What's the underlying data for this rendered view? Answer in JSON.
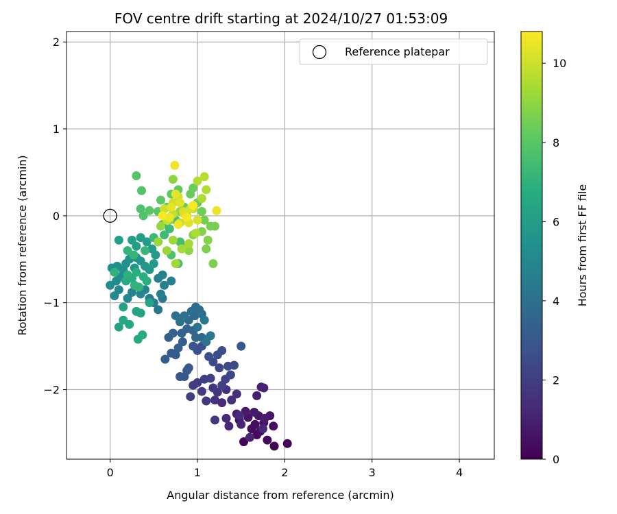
{
  "chart_data": {
    "type": "scatter",
    "title": "FOV centre drift starting at 2024/10/27 01:53:09",
    "xlabel": "Angular distance from reference (arcmin)",
    "ylabel": "Rotation from reference (arcmin)",
    "xlim": [
      -0.5,
      4.4
    ],
    "ylim": [
      -2.8,
      2.12
    ],
    "xticks": [
      0,
      1,
      2,
      3,
      4
    ],
    "yticks": [
      -2,
      -1,
      0,
      1,
      2
    ],
    "xtick_labels": [
      "0",
      "1",
      "2",
      "3",
      "4"
    ],
    "ytick_labels": [
      "−2",
      "−1",
      "0",
      "1",
      "2"
    ],
    "grid": true,
    "legend": {
      "position": "top-right",
      "entries": [
        {
          "label": "Reference platepar",
          "marker": "open-circle"
        }
      ]
    },
    "reference_point": {
      "x": 0,
      "y": 0
    },
    "colorbar": {
      "label": "Hours from first FF file",
      "min": 0,
      "max": 10.8,
      "ticks": [
        0,
        2,
        4,
        6,
        8,
        10
      ],
      "tick_labels": [
        "0",
        "2",
        "4",
        "6",
        "8",
        "10"
      ],
      "colormap": "viridis"
    },
    "points": [
      [
        1.88,
        -2.65,
        0.05
      ],
      [
        2.03,
        -2.62,
        0.1
      ],
      [
        1.53,
        -2.6,
        0.15
      ],
      [
        1.8,
        -2.58,
        0.2
      ],
      [
        1.68,
        -2.52,
        0.25
      ],
      [
        1.62,
        -2.45,
        0.3
      ],
      [
        1.72,
        -2.48,
        0.35
      ],
      [
        1.87,
        -2.42,
        0.4
      ],
      [
        1.66,
        -2.4,
        0.45
      ],
      [
        1.76,
        -2.38,
        0.5
      ],
      [
        1.48,
        -2.35,
        0.55
      ],
      [
        1.58,
        -2.32,
        0.6
      ],
      [
        1.7,
        -2.3,
        0.65
      ],
      [
        1.83,
        -2.3,
        0.7
      ],
      [
        1.55,
        -2.25,
        0.75
      ],
      [
        1.65,
        -2.26,
        0.8
      ],
      [
        1.45,
        -2.28,
        0.85
      ],
      [
        1.77,
        -2.33,
        0.9
      ],
      [
        1.68,
        -2.07,
        0.95
      ],
      [
        1.73,
        -1.97,
        1.0
      ],
      [
        1.76,
        -1.98,
        1.05
      ],
      [
        1.5,
        -2.4,
        1.1
      ],
      [
        1.6,
        -2.55,
        1.15
      ],
      [
        1.75,
        -2.45,
        1.2
      ],
      [
        1.36,
        -2.42,
        1.25
      ],
      [
        1.33,
        -2.33,
        1.3
      ],
      [
        1.48,
        -2.3,
        1.35
      ],
      [
        1.28,
        -2.15,
        1.4
      ],
      [
        1.39,
        -2.12,
        1.45
      ],
      [
        1.45,
        -2.05,
        1.5
      ],
      [
        1.2,
        -2.12,
        1.55
      ],
      [
        1.33,
        -2.0,
        1.6
      ],
      [
        1.23,
        -2.03,
        1.65
      ],
      [
        1.18,
        -1.98,
        1.7
      ],
      [
        1.1,
        -2.13,
        1.75
      ],
      [
        1.2,
        -2.35,
        1.8
      ],
      [
        1.05,
        -2.02,
        1.85
      ],
      [
        1.0,
        -1.92,
        1.9
      ],
      [
        0.95,
        -1.95,
        1.95
      ],
      [
        0.92,
        -2.08,
        2.0
      ],
      [
        1.08,
        -1.88,
        2.05
      ],
      [
        1.15,
        -1.87,
        2.1
      ],
      [
        1.28,
        -1.95,
        2.15
      ],
      [
        1.32,
        -1.88,
        2.2
      ],
      [
        1.38,
        -1.83,
        2.25
      ],
      [
        1.25,
        -1.75,
        2.3
      ],
      [
        1.35,
        -1.73,
        2.4
      ],
      [
        1.42,
        -1.72,
        2.45
      ],
      [
        1.18,
        -1.68,
        2.5
      ],
      [
        1.23,
        -1.6,
        2.55
      ],
      [
        1.28,
        -1.55,
        2.6
      ],
      [
        1.13,
        -1.62,
        2.65
      ],
      [
        1.05,
        -1.5,
        2.7
      ],
      [
        1.0,
        -1.55,
        2.75
      ],
      [
        0.95,
        -1.5,
        2.8
      ],
      [
        1.5,
        -1.5,
        2.85
      ],
      [
        0.85,
        -1.85,
        2.9
      ],
      [
        0.8,
        -1.85,
        2.95
      ],
      [
        0.88,
        -1.78,
        3.0
      ],
      [
        0.9,
        -1.75,
        3.05
      ],
      [
        0.75,
        -1.6,
        3.1
      ],
      [
        0.7,
        -1.58,
        3.15
      ],
      [
        0.63,
        -1.65,
        3.2
      ],
      [
        0.78,
        -1.52,
        3.25
      ],
      [
        0.83,
        -1.45,
        3.3
      ],
      [
        0.67,
        -1.4,
        3.35
      ],
      [
        0.72,
        -1.35,
        3.4
      ],
      [
        0.82,
        -1.35,
        3.45
      ],
      [
        0.88,
        -1.3,
        3.5
      ],
      [
        0.95,
        -1.32,
        3.55
      ],
      [
        0.98,
        -1.4,
        3.6
      ],
      [
        1.05,
        -1.4,
        3.65
      ],
      [
        0.9,
        -1.2,
        3.7
      ],
      [
        0.97,
        -1.15,
        3.75
      ],
      [
        0.93,
        -1.1,
        3.8
      ],
      [
        0.98,
        -1.05,
        3.85
      ],
      [
        1.02,
        -1.08,
        3.9
      ],
      [
        1.05,
        -1.13,
        3.95
      ],
      [
        0.8,
        -1.22,
        4.0
      ],
      [
        0.75,
        -1.15,
        4.05
      ],
      [
        0.85,
        -1.15,
        4.1
      ],
      [
        1.0,
        -1.28,
        4.15
      ],
      [
        1.1,
        -1.45,
        4.2
      ],
      [
        1.15,
        -1.38,
        4.25
      ],
      [
        1.08,
        -1.2,
        4.3
      ],
      [
        0.55,
        -1.08,
        4.4
      ],
      [
        0.6,
        -0.95,
        4.45
      ],
      [
        0.5,
        -1.0,
        4.5
      ],
      [
        0.45,
        -0.95,
        4.55
      ],
      [
        0.58,
        -0.9,
        4.6
      ],
      [
        0.62,
        -0.8,
        4.65
      ],
      [
        0.7,
        -0.75,
        4.7
      ],
      [
        0.55,
        -0.72,
        4.75
      ],
      [
        0.6,
        -0.68,
        4.8
      ],
      [
        0.4,
        -0.85,
        4.85
      ],
      [
        0.35,
        -0.9,
        4.9
      ],
      [
        0.25,
        -0.88,
        4.95
      ],
      [
        0.2,
        -0.95,
        5.0
      ],
      [
        0.05,
        -0.92,
        5.05
      ],
      [
        0.1,
        -0.85,
        5.1
      ],
      [
        0.0,
        -0.8,
        5.15
      ],
      [
        0.07,
        -0.75,
        5.2
      ],
      [
        0.12,
        -0.7,
        5.25
      ],
      [
        0.15,
        -0.62,
        5.3
      ],
      [
        0.02,
        -0.6,
        5.35
      ],
      [
        0.08,
        -0.58,
        5.4
      ],
      [
        0.18,
        -0.55,
        5.45
      ],
      [
        0.22,
        -0.5,
        5.5
      ],
      [
        0.3,
        -0.48,
        5.55
      ],
      [
        0.35,
        -0.52,
        5.6
      ],
      [
        0.28,
        -0.6,
        5.65
      ],
      [
        0.4,
        -0.58,
        5.7
      ],
      [
        0.45,
        -0.62,
        5.75
      ],
      [
        0.5,
        -0.55,
        5.8
      ],
      [
        0.52,
        -0.45,
        5.85
      ],
      [
        0.48,
        -0.38,
        5.9
      ],
      [
        0.42,
        -0.3,
        5.95
      ],
      [
        0.35,
        -0.25,
        6.0
      ],
      [
        0.3,
        -0.35,
        6.05
      ],
      [
        0.25,
        -0.28,
        6.1
      ],
      [
        0.1,
        -0.28,
        6.15
      ],
      [
        0.15,
        -1.05,
        6.2
      ],
      [
        0.1,
        -1.28,
        6.25
      ],
      [
        0.3,
        -1.1,
        6.3
      ],
      [
        0.35,
        -1.12,
        6.35
      ],
      [
        0.45,
        -1.0,
        6.4
      ],
      [
        0.15,
        -1.2,
        6.45
      ],
      [
        0.22,
        -1.25,
        6.5
      ],
      [
        0.32,
        -1.42,
        6.55
      ],
      [
        0.37,
        -1.37,
        6.6
      ],
      [
        0.18,
        -0.75,
        6.65
      ],
      [
        0.25,
        -0.72,
        6.7
      ],
      [
        0.38,
        -0.7,
        6.75
      ],
      [
        0.3,
        -0.65,
        6.8
      ],
      [
        0.42,
        -0.75,
        6.85
      ],
      [
        0.2,
        -0.68,
        6.9
      ],
      [
        0.05,
        -0.65,
        6.95
      ],
      [
        0.28,
        -0.8,
        7.0
      ],
      [
        0.33,
        -0.82,
        7.05
      ],
      [
        0.2,
        -0.4,
        7.1
      ],
      [
        0.27,
        -0.45,
        7.15
      ],
      [
        0.4,
        -0.4,
        7.2
      ],
      [
        0.5,
        -0.25,
        7.25
      ],
      [
        0.55,
        -0.3,
        7.3
      ],
      [
        0.62,
        -0.22,
        7.35
      ],
      [
        0.68,
        -0.15,
        7.4
      ],
      [
        0.6,
        -0.1,
        7.45
      ],
      [
        0.75,
        -0.05,
        7.5
      ],
      [
        0.8,
        -0.3,
        7.55
      ],
      [
        0.85,
        -0.35,
        7.6
      ],
      [
        0.78,
        -0.55,
        7.65
      ],
      [
        0.7,
        -0.45,
        7.7
      ],
      [
        0.35,
        0.08,
        7.75
      ],
      [
        0.38,
        0.0,
        7.8
      ],
      [
        0.36,
        0.29,
        7.85
      ],
      [
        0.3,
        0.46,
        7.9
      ],
      [
        0.45,
        0.06,
        7.95
      ],
      [
        0.55,
        0.05,
        8.0
      ],
      [
        0.58,
        0.18,
        8.05
      ],
      [
        0.65,
        0.1,
        8.1
      ],
      [
        0.7,
        0.25,
        8.15
      ],
      [
        0.78,
        0.3,
        8.2
      ],
      [
        0.85,
        0.1,
        8.25
      ],
      [
        0.92,
        0.25,
        8.3
      ],
      [
        0.95,
        0.32,
        8.35
      ],
      [
        1.0,
        0.15,
        8.4
      ],
      [
        1.05,
        0.05,
        8.45
      ],
      [
        1.08,
        -0.05,
        8.5
      ],
      [
        1.15,
        -0.12,
        8.55
      ],
      [
        1.2,
        -0.12,
        8.6
      ],
      [
        1.18,
        -0.55,
        8.65
      ],
      [
        1.1,
        -0.38,
        8.7
      ],
      [
        1.12,
        -0.28,
        8.75
      ],
      [
        1.05,
        -0.18,
        8.8
      ],
      [
        0.95,
        -0.22,
        8.85
      ],
      [
        0.9,
        -0.4,
        8.9
      ],
      [
        0.72,
        0.42,
        8.95
      ],
      [
        0.8,
        0.05,
        9.0
      ],
      [
        0.68,
        -0.05,
        9.05
      ],
      [
        0.58,
        -0.12,
        9.1
      ],
      [
        0.55,
        -0.3,
        9.15
      ],
      [
        0.65,
        -0.4,
        9.2
      ],
      [
        0.72,
        -0.28,
        9.25
      ],
      [
        0.75,
        -0.55,
        9.3
      ],
      [
        0.82,
        -0.38,
        9.35
      ],
      [
        0.9,
        -0.32,
        9.4
      ],
      [
        0.98,
        -0.2,
        9.45
      ],
      [
        1.05,
        0.2,
        9.5
      ],
      [
        1.1,
        0.3,
        9.55
      ],
      [
        1.0,
        0.4,
        9.6
      ],
      [
        1.08,
        0.45,
        9.65
      ],
      [
        0.95,
        0.08,
        9.7
      ],
      [
        0.88,
        0.0,
        9.75
      ],
      [
        0.8,
        -0.08,
        9.8
      ],
      [
        0.72,
        0.02,
        9.85
      ],
      [
        0.65,
        -0.05,
        9.9
      ],
      [
        0.62,
        0.08,
        9.95
      ],
      [
        0.72,
        0.15,
        10.0
      ],
      [
        0.78,
        0.22,
        10.05
      ],
      [
        0.84,
        0.05,
        10.1
      ],
      [
        0.92,
        0.08,
        10.15
      ],
      [
        1.0,
        -0.05,
        10.2
      ],
      [
        0.9,
        -0.08,
        10.25
      ],
      [
        0.85,
        0.02,
        10.3
      ],
      [
        0.8,
        0.15,
        10.35
      ],
      [
        0.75,
        0.25,
        10.4
      ],
      [
        0.7,
        0.1,
        10.45
      ],
      [
        0.68,
        -0.02,
        10.5
      ],
      [
        1.22,
        0.06,
        10.55
      ],
      [
        0.74,
        0.58,
        10.6
      ],
      [
        0.78,
        -0.1,
        10.65
      ],
      [
        0.88,
        -0.02,
        10.7
      ],
      [
        0.95,
        0.12,
        10.75
      ],
      [
        0.6,
        0.0,
        10.8
      ]
    ]
  }
}
